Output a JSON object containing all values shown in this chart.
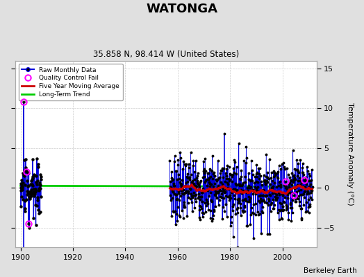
{
  "title": "WATONGA",
  "subtitle": "35.858 N, 98.414 W (United States)",
  "ylabel": "Temperature Anomaly (°C)",
  "attribution": "Berkeley Earth",
  "xlim": [
    1898,
    2013
  ],
  "ylim": [
    -7.5,
    16
  ],
  "yticks": [
    -5,
    0,
    5,
    10,
    15
  ],
  "xticks": [
    1900,
    1920,
    1940,
    1960,
    1980,
    2000
  ],
  "fig_bg_color": "#e0e0e0",
  "plot_bg_color": "#ffffff",
  "raw_line_color": "#0000dd",
  "raw_dot_color": "#000000",
  "qc_fail_color": "#ff00ff",
  "moving_avg_color": "#cc0000",
  "trend_color": "#00cc00",
  "grid_color": "#cccccc",
  "seed": 42,
  "early_start_year": 1900.0,
  "early_end_year": 1908.0,
  "main_start_year": 1957.0,
  "main_end_year": 2011.5
}
